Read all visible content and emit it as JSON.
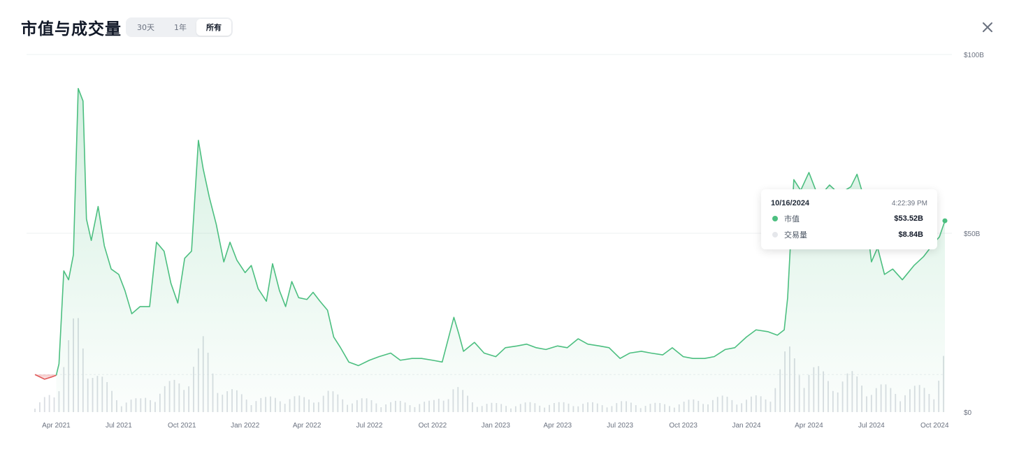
{
  "header": {
    "title": "市值与成交量",
    "tabs": [
      {
        "label": "30天",
        "active": false
      },
      {
        "label": "1年",
        "active": false
      },
      {
        "label": "所有",
        "active": true
      }
    ],
    "close_icon": "close-icon"
  },
  "tooltip": {
    "date": "10/16/2024",
    "time": "4:22:39 PM",
    "rows": [
      {
        "label": "市值",
        "value": "$53.52B",
        "color": "#4cbf80"
      },
      {
        "label": "交易量",
        "value": "$8.84B",
        "color": "#e5e7eb"
      }
    ]
  },
  "colors": {
    "up": "#4cbf80",
    "down": "#e05a5a",
    "volume": "#d9dde2",
    "grid": "#eef0f2"
  },
  "chart_data": {
    "type": "area",
    "title": "市值与成交量",
    "x_ticks": [
      "Apr 2021",
      "Jul 2021",
      "Oct 2021",
      "Jan 2022",
      "Apr 2022",
      "Jul 2022",
      "Oct 2022",
      "Jan 2023",
      "Apr 2023",
      "Jul 2023",
      "Oct 2023",
      "Jan 2024",
      "Apr 2024",
      "Jul 2024",
      "Oct 2024"
    ],
    "y_ticks": [
      "$100B",
      "$50B",
      "$0"
    ],
    "ylim": [
      0,
      100
    ],
    "y_unit": "B USD",
    "baseline": 10.5,
    "start": "2021-03-01",
    "end": "2024-10-16",
    "market_cap_series": {
      "name": "市值",
      "x": [
        "2021-03-01",
        "2021-03-15",
        "2021-03-25",
        "2021-04-01",
        "2021-04-05",
        "2021-04-12",
        "2021-04-19",
        "2021-04-26",
        "2021-05-03",
        "2021-05-10",
        "2021-05-15",
        "2021-05-22",
        "2021-06-01",
        "2021-06-10",
        "2021-06-20",
        "2021-07-01",
        "2021-07-10",
        "2021-07-20",
        "2021-08-01",
        "2021-08-15",
        "2021-08-25",
        "2021-09-05",
        "2021-09-15",
        "2021-09-25",
        "2021-10-05",
        "2021-10-15",
        "2021-10-25",
        "2021-11-01",
        "2021-11-10",
        "2021-11-20",
        "2021-12-01",
        "2021-12-10",
        "2021-12-20",
        "2022-01-01",
        "2022-01-10",
        "2022-01-20",
        "2022-02-01",
        "2022-02-10",
        "2022-02-20",
        "2022-03-01",
        "2022-03-10",
        "2022-03-20",
        "2022-04-01",
        "2022-04-10",
        "2022-04-20",
        "2022-05-01",
        "2022-05-10",
        "2022-05-20",
        "2022-06-01",
        "2022-06-15",
        "2022-07-01",
        "2022-07-15",
        "2022-08-01",
        "2022-08-15",
        "2022-09-01",
        "2022-09-15",
        "2022-10-01",
        "2022-10-15",
        "2022-11-01",
        "2022-11-08",
        "2022-11-15",
        "2022-12-01",
        "2022-12-15",
        "2023-01-01",
        "2023-01-15",
        "2023-02-01",
        "2023-02-15",
        "2023-03-01",
        "2023-03-15",
        "2023-04-01",
        "2023-04-15",
        "2023-05-01",
        "2023-05-15",
        "2023-06-01",
        "2023-06-15",
        "2023-07-01",
        "2023-07-15",
        "2023-08-01",
        "2023-08-15",
        "2023-09-01",
        "2023-09-15",
        "2023-10-01",
        "2023-10-15",
        "2023-11-01",
        "2023-11-15",
        "2023-12-01",
        "2023-12-15",
        "2024-01-01",
        "2024-01-15",
        "2024-02-01",
        "2024-02-15",
        "2024-02-25",
        "2024-03-01",
        "2024-03-10",
        "2024-03-20",
        "2024-04-01",
        "2024-04-15",
        "2024-05-01",
        "2024-05-15",
        "2024-06-01",
        "2024-06-10",
        "2024-06-20",
        "2024-07-01",
        "2024-07-10",
        "2024-07-20",
        "2024-08-01",
        "2024-08-15",
        "2024-09-01",
        "2024-09-15",
        "2024-10-01",
        "2024-10-08",
        "2024-10-16"
      ],
      "values": [
        10.5,
        9.2,
        9.8,
        10.3,
        13.5,
        39.5,
        37.0,
        44.0,
        90.5,
        87.0,
        54.0,
        48.0,
        57.5,
        46.5,
        40.0,
        38.5,
        34.0,
        27.5,
        29.5,
        29.5,
        47.5,
        45.0,
        36.0,
        30.5,
        43.0,
        45.0,
        76.0,
        68.0,
        60.0,
        52.5,
        42.0,
        47.5,
        42.5,
        39.0,
        41.0,
        34.5,
        31.0,
        41.5,
        34.0,
        29.5,
        36.5,
        32.0,
        31.5,
        33.5,
        31.0,
        28.5,
        21.0,
        18.0,
        14.0,
        13.0,
        14.5,
        15.5,
        16.5,
        14.5,
        15.0,
        15.0,
        14.5,
        14.0,
        26.5,
        22.0,
        17.0,
        19.5,
        16.5,
        15.5,
        18.0,
        18.5,
        19.0,
        18.0,
        17.5,
        18.5,
        18.0,
        20.5,
        19.0,
        18.5,
        18.0,
        15.0,
        16.5,
        17.0,
        16.5,
        16.0,
        18.0,
        15.5,
        15.0,
        15.0,
        15.5,
        17.5,
        18.0,
        21.0,
        23.0,
        22.5,
        21.5,
        23.0,
        32.0,
        65.0,
        62.0,
        67.0,
        60.0,
        63.5,
        61.0,
        63.0,
        66.5,
        60.0,
        42.0,
        46.0,
        38.5,
        40.0,
        37.0,
        41.0,
        43.5,
        47.5,
        49.0,
        53.5
      ]
    },
    "volume_series": {
      "name": "交易量",
      "x": [
        "2021-03-01",
        "2021-04-01",
        "2021-05-01",
        "2021-06-01",
        "2021-07-01",
        "2021-08-01",
        "2021-09-01",
        "2021-10-01",
        "2021-11-01",
        "2021-12-01",
        "2022-01-01",
        "2022-02-01",
        "2022-03-01",
        "2022-04-01",
        "2022-05-01",
        "2022-06-01",
        "2022-07-01",
        "2022-08-01",
        "2022-09-01",
        "2022-10-01",
        "2022-11-01",
        "2022-12-01",
        "2023-01-01",
        "2023-02-01",
        "2023-03-01",
        "2023-04-01",
        "2023-05-01",
        "2023-06-01",
        "2023-07-01",
        "2023-08-01",
        "2023-09-01",
        "2023-10-01",
        "2023-11-01",
        "2023-12-01",
        "2024-01-01",
        "2024-02-01",
        "2024-03-01",
        "2024-04-01",
        "2024-05-01",
        "2024-06-01",
        "2024-07-01",
        "2024-08-01",
        "2024-09-01",
        "2024-10-01",
        "2024-10-16"
      ],
      "values": [
        0.5,
        4.0,
        14.0,
        5.5,
        2.0,
        1.8,
        3.5,
        5.0,
        10.0,
        3.5,
        2.5,
        2.0,
        2.5,
        2.0,
        3.0,
        2.0,
        1.8,
        1.5,
        1.5,
        1.5,
        4.0,
        1.5,
        1.2,
        1.2,
        1.4,
        1.3,
        1.5,
        1.2,
        1.5,
        1.3,
        1.2,
        1.5,
        2.0,
        2.2,
        2.0,
        2.5,
        9.0,
        7.0,
        5.0,
        5.5,
        4.0,
        3.5,
        3.5,
        4.0,
        8.84
      ]
    }
  }
}
